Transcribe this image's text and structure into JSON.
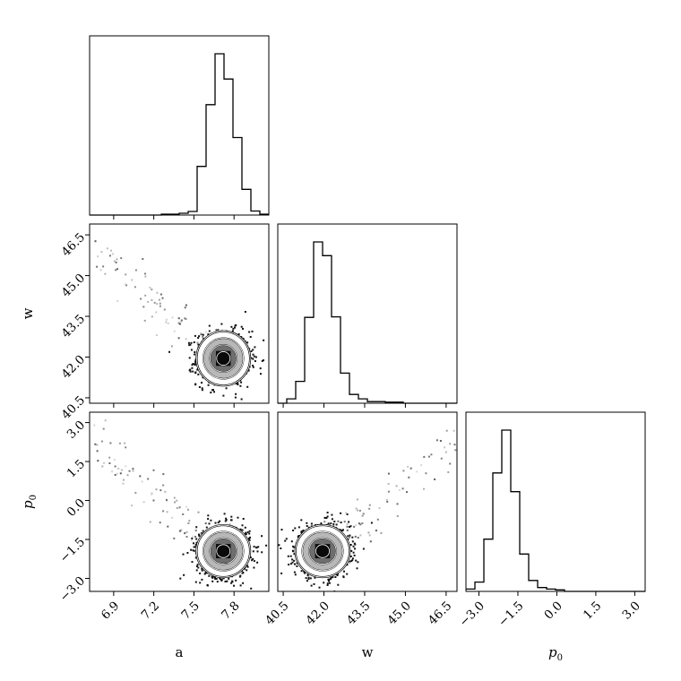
{
  "chart_data": {
    "type": "corner",
    "parameters": [
      {
        "key": "a",
        "label": "a",
        "label_sub": "",
        "range": [
          6.72,
          8.06
        ],
        "ticks": [
          6.9,
          7.2,
          7.5,
          7.8
        ],
        "tick_labels": [
          "6.9",
          "7.2",
          "7.5",
          "7.8"
        ]
      },
      {
        "key": "w",
        "label": "w",
        "label_sub": "",
        "range": [
          40.3,
          46.9
        ],
        "ticks": [
          40.5,
          42.0,
          43.5,
          45.0,
          46.5
        ],
        "tick_labels": [
          "40.5",
          "42.0",
          "43.5",
          "45.0",
          "46.5"
        ]
      },
      {
        "key": "p0",
        "label": "p",
        "label_sub": "0",
        "range": [
          -3.5,
          3.4
        ],
        "ticks": [
          -3.0,
          -1.5,
          0.0,
          1.5,
          3.0
        ],
        "tick_labels": [
          "−3.0",
          "−1.5",
          "0.0",
          "1.5",
          "3.0"
        ]
      }
    ],
    "histograms": [
      {
        "param": "a",
        "bin_edges": [
          6.72,
          6.787,
          6.854,
          6.921,
          6.988,
          7.055,
          7.122,
          7.189,
          7.256,
          7.323,
          7.39,
          7.457,
          7.524,
          7.591,
          7.658,
          7.725,
          7.792,
          7.859,
          7.926,
          7.993,
          8.06
        ],
        "counts": [
          0,
          0,
          0,
          0,
          0,
          0,
          0,
          0,
          2,
          2,
          4,
          8,
          108,
          245,
          358,
          302,
          172,
          57,
          9,
          2
        ]
      },
      {
        "param": "w",
        "bin_edges": [
          40.3,
          40.63,
          40.96,
          41.29,
          41.62,
          41.95,
          42.28,
          42.61,
          42.94,
          43.27,
          43.6,
          43.93,
          44.26,
          44.59,
          44.92,
          45.25,
          45.58,
          45.91,
          46.24,
          46.57,
          46.9
        ],
        "counts": [
          0,
          8,
          40,
          157,
          295,
          270,
          158,
          55,
          16,
          8,
          3,
          3,
          2,
          2,
          0,
          0,
          0,
          0,
          0,
          0
        ]
      },
      {
        "param": "p0",
        "bin_edges": [
          -3.5,
          -3.155,
          -2.81,
          -2.465,
          -2.12,
          -1.775,
          -1.43,
          -1.085,
          -0.74,
          -0.395,
          -0.05,
          0.295,
          0.64,
          0.985,
          1.33,
          1.675,
          2.02,
          2.365,
          2.71,
          3.055,
          3.4
        ],
        "counts": [
          3,
          12,
          67,
          152,
          207,
          128,
          48,
          14,
          5,
          3,
          2,
          0,
          0,
          0,
          0,
          0,
          0,
          0,
          0,
          0
        ]
      }
    ],
    "joint": [
      {
        "x": "a",
        "y": "w",
        "center": [
          7.72,
          41.95
        ],
        "sigma": [
          0.1,
          0.5
        ],
        "contour_scales": [
          0.5,
          1.0,
          1.5,
          2.0
        ]
      },
      {
        "x": "a",
        "y": "p0",
        "center": [
          7.72,
          -1.95
        ],
        "sigma": [
          0.1,
          0.5
        ],
        "contour_scales": [
          0.5,
          1.0,
          1.5,
          2.0
        ]
      },
      {
        "x": "w",
        "y": "p0",
        "center": [
          41.95,
          -1.95
        ],
        "sigma": [
          0.5,
          0.5
        ],
        "contour_scales": [
          0.5,
          1.0,
          1.5,
          2.0
        ]
      }
    ],
    "grid": false,
    "legend": "none"
  }
}
